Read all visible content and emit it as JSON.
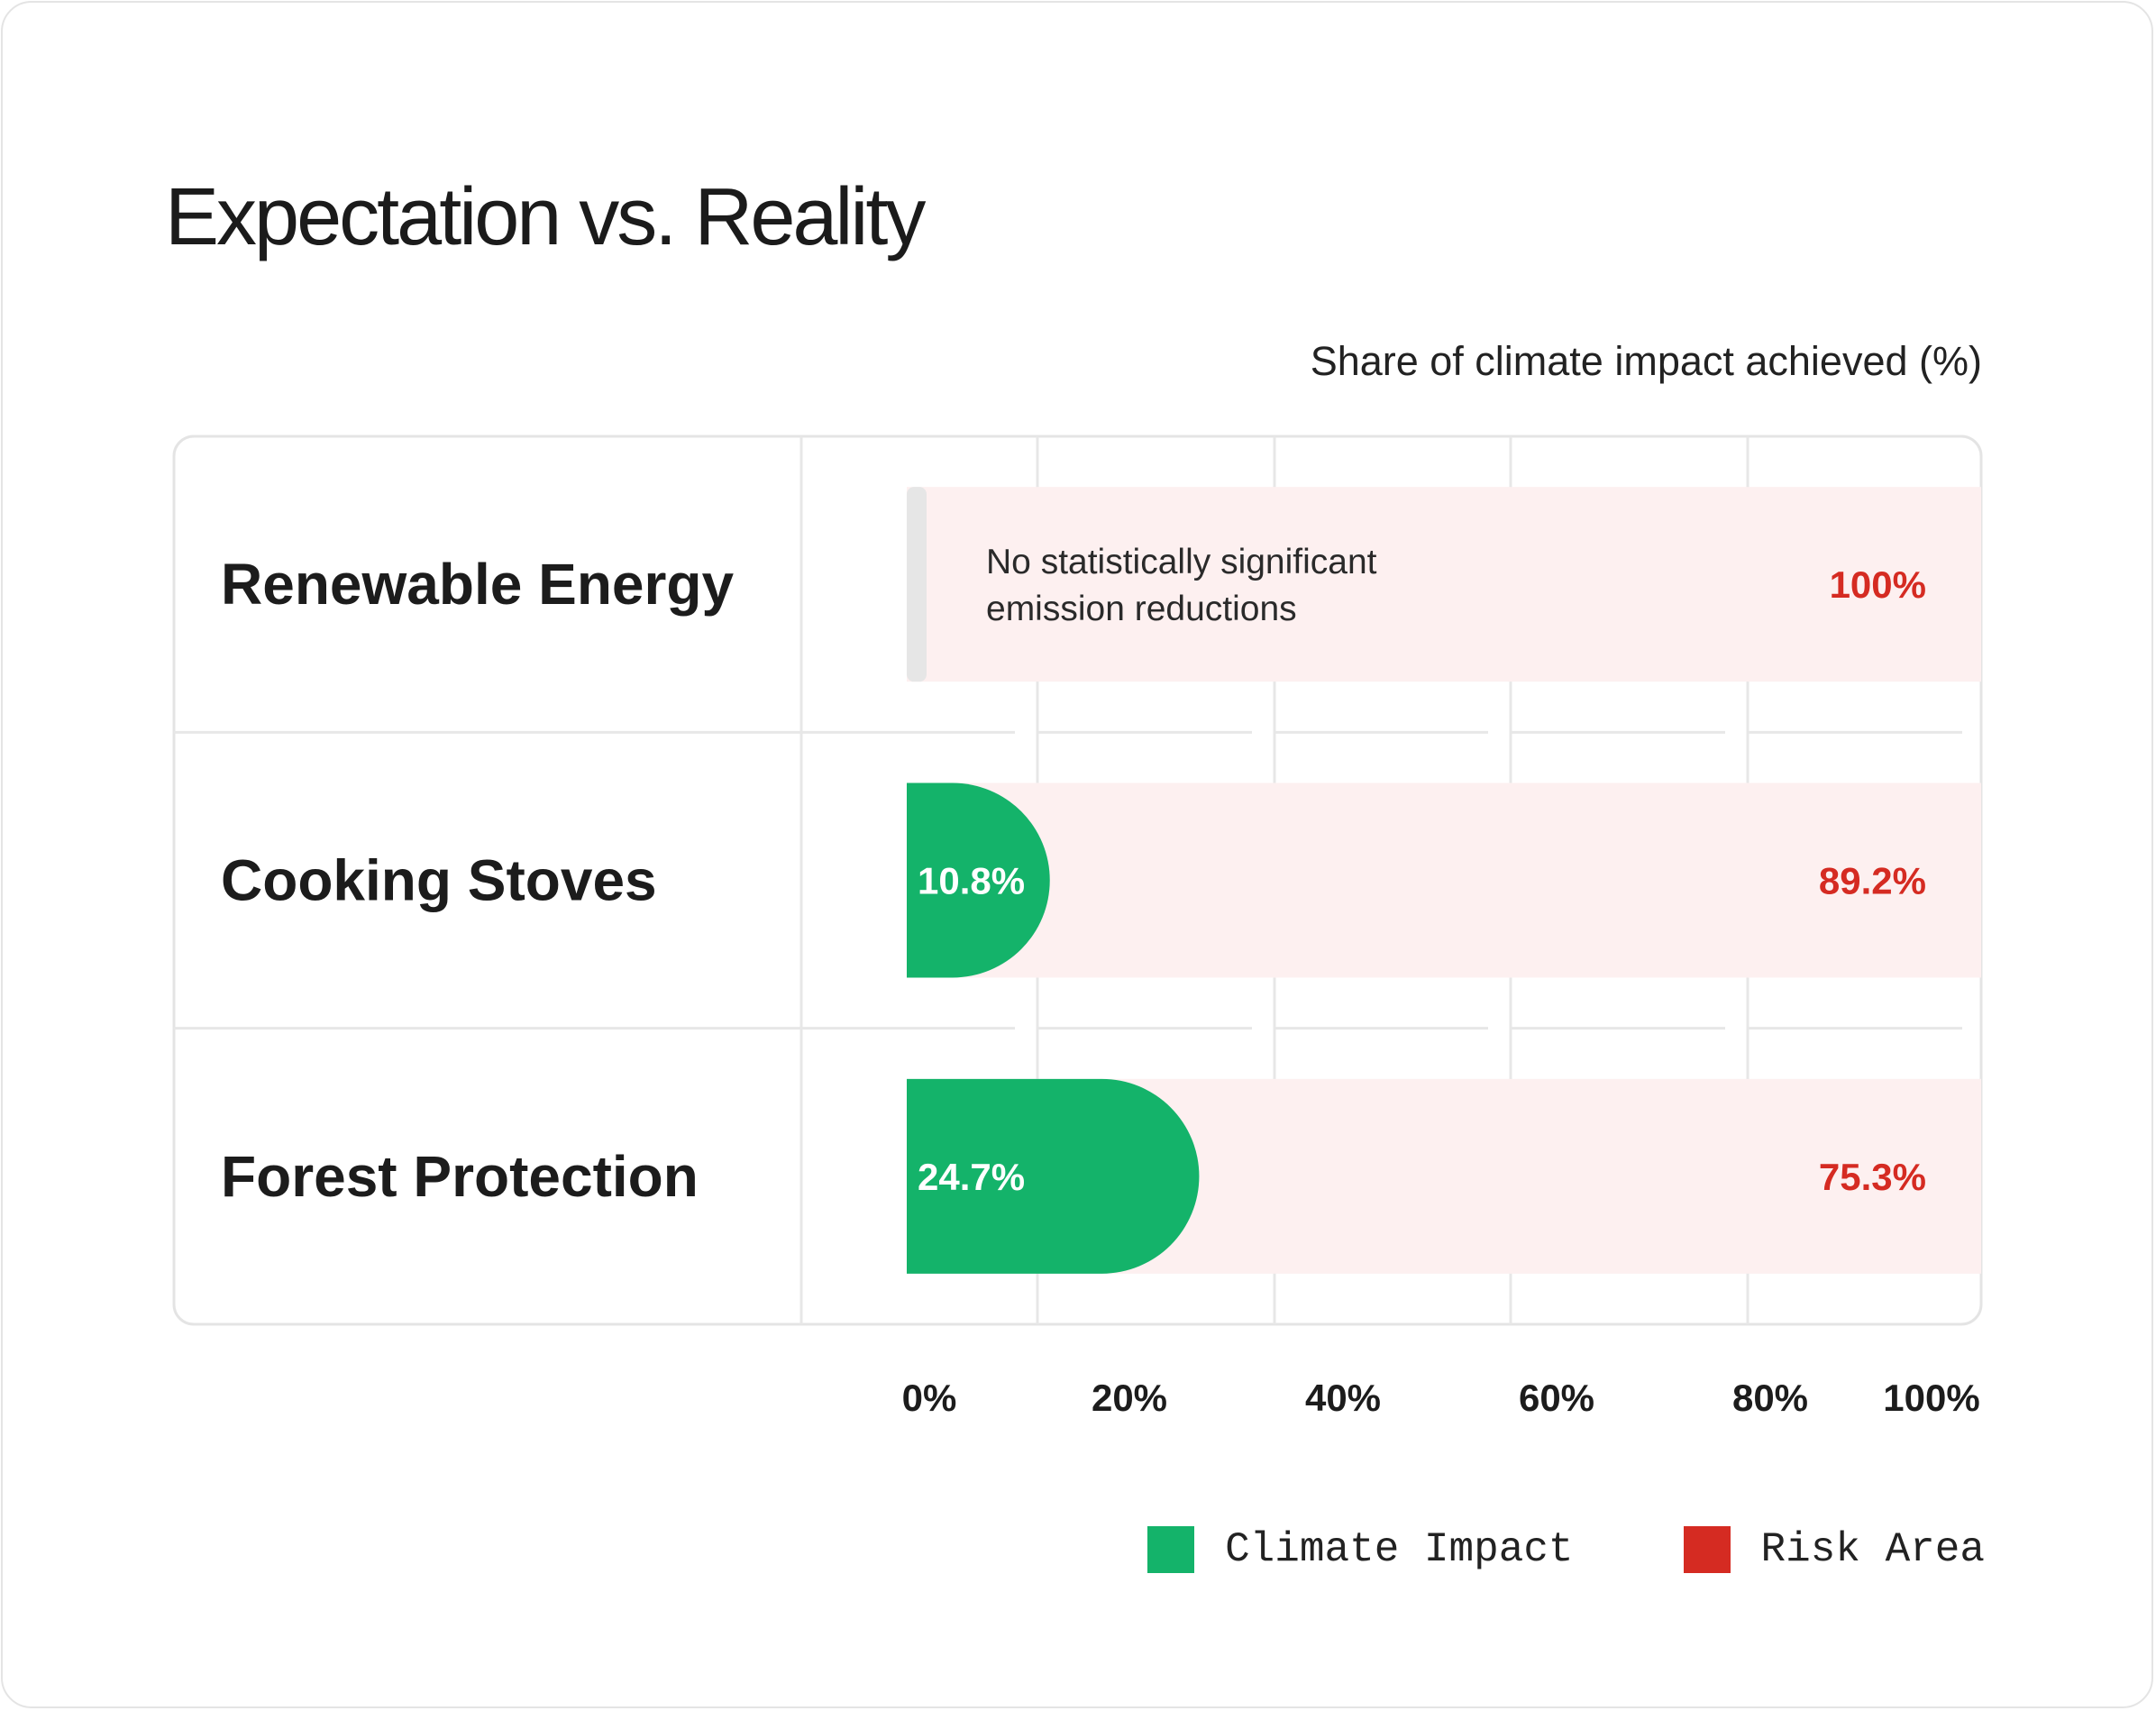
{
  "title": "Expectation vs. Reality",
  "subtitle": "Share of climate impact achieved (%)",
  "colors": {
    "impact": "#14b36a",
    "risk": "#d52b22",
    "risk_band": "#fdf0f0",
    "null_bar": "#e6e6e6",
    "grid": "#e7e7e7"
  },
  "chart_data": {
    "type": "bar",
    "orientation": "horizontal",
    "stacked": true,
    "categories": [
      "Renewable Energy",
      "Cooking Stoves",
      "Forest Protection"
    ],
    "series": [
      {
        "name": "Climate Impact",
        "color": "#14b36a",
        "values": [
          0,
          10.8,
          24.7
        ],
        "labels": [
          "",
          "10.8%",
          "24.7%"
        ]
      },
      {
        "name": "Risk Area",
        "color": "#d52b22",
        "values": [
          100,
          89.2,
          75.3
        ],
        "labels": [
          "100%",
          "89.2%",
          "75.3%"
        ]
      }
    ],
    "annotations": [
      {
        "category": "Renewable Energy",
        "lines": [
          "No statistically significant",
          "emission reductions"
        ]
      }
    ],
    "xlim": [
      0,
      100
    ],
    "xticks": [
      0,
      20,
      40,
      60,
      80,
      100
    ],
    "xtick_labels": [
      "0%",
      "20%",
      "40%",
      "60%",
      "80%",
      "100%"
    ],
    "grid": true,
    "legend_position": "bottom-right"
  }
}
